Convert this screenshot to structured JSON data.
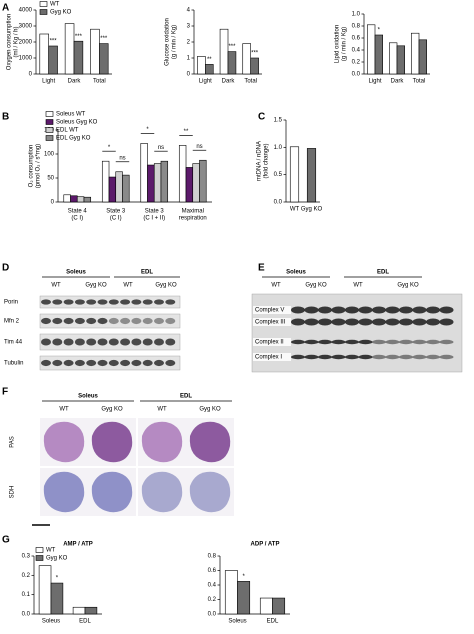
{
  "panels": [
    "A",
    "B",
    "C",
    "D",
    "E",
    "F",
    "G"
  ],
  "chart_data": [
    {
      "type": "bar",
      "ylabel": "Oxygen consumption\n(ml / Kg / h)",
      "categories": [
        "Light",
        "Dark",
        "Total"
      ],
      "series": [
        {
          "name": "WT",
          "color": "#ffffff",
          "values": [
            2500,
            3150,
            2800
          ]
        },
        {
          "name": "Gyg KO",
          "color": "#6d6d6d",
          "values": [
            1750,
            2050,
            1900
          ]
        }
      ],
      "significance": [
        "***",
        "***",
        "***"
      ],
      "ylim": [
        0,
        4000
      ],
      "yticks": [
        0,
        1000,
        2000,
        3000,
        4000
      ],
      "legend": "upper left"
    },
    {
      "type": "bar",
      "ylabel": "Glucose oxidation\n(g / min / Kg)",
      "categories": [
        "Light",
        "Dark",
        "Total"
      ],
      "series": [
        {
          "name": "WT",
          "color": "#ffffff",
          "values": [
            1.1,
            2.8,
            1.9
          ]
        },
        {
          "name": "Gyg KO",
          "color": "#6d6d6d",
          "values": [
            0.6,
            1.4,
            1.0
          ]
        }
      ],
      "significance": [
        "**",
        "***",
        "***"
      ],
      "ylim": [
        0,
        4
      ],
      "yticks": [
        0,
        1,
        2,
        3,
        4
      ]
    },
    {
      "type": "bar",
      "ylabel": "Lipid oxidation\n(g / min / Kg)",
      "categories": [
        "Light",
        "Dark",
        "Total"
      ],
      "series": [
        {
          "name": "WT",
          "color": "#ffffff",
          "values": [
            0.82,
            0.52,
            0.68
          ]
        },
        {
          "name": "Gyg KO",
          "color": "#6d6d6d",
          "values": [
            0.65,
            0.47,
            0.57
          ]
        }
      ],
      "significance": [
        "*",
        null,
        null
      ],
      "ylim": [
        0,
        1
      ],
      "yticks": [
        {
          "value": 0,
          "label": "0.0"
        },
        0.2,
        0.4,
        0.6,
        0.8,
        {
          "value": 1,
          "label": "1.0"
        }
      ]
    },
    {
      "type": "bar",
      "ylabel": "O₂ consumption\n(pmol O₂ / s*mg)",
      "categories": [
        "State 4\n(C I)",
        "State 3\n(C I)",
        "State 3\n(C I + II)",
        "Maximal\nrespiration"
      ],
      "series": [
        {
          "name": "Soleus WT",
          "color": "#ffffff",
          "values": [
            15,
            85,
            122,
            118
          ]
        },
        {
          "name": "Soleus Gyg KO",
          "color": "#5c1a6b",
          "values": [
            13,
            52,
            77,
            72
          ]
        },
        {
          "name": "EDL WT",
          "color": "#d0d0d0",
          "values": [
            11,
            63,
            80,
            80
          ]
        },
        {
          "name": "EDL Gyg KO",
          "color": "#8a8a8a",
          "values": [
            10,
            56,
            85,
            87
          ]
        }
      ],
      "significance_soleus": [
        null,
        "*",
        "*",
        "**"
      ],
      "significance_edl": [
        null,
        "ns",
        "ns",
        "ns"
      ],
      "ylim": [
        0,
        150
      ],
      "yticks": [
        0,
        50,
        100,
        150
      ],
      "legend": "upper left"
    },
    {
      "type": "bar",
      "ylabel": "mtDNA / nDNA\n(fold change)",
      "categories": [
        "WT",
        "Gyg KO"
      ],
      "values": [
        1.01,
        0.98
      ],
      "colors": [
        "#ffffff",
        "#6d6d6d"
      ],
      "ylim": [
        0,
        1.5
      ],
      "yticks": [
        {
          "value": 0,
          "label": "0.0"
        },
        0.5,
        {
          "value": 1,
          "label": "1.0"
        },
        1.5
      ]
    },
    {
      "type": "bar",
      "title": "AMP / ATP",
      "categories": [
        "Soleus",
        "EDL"
      ],
      "series": [
        {
          "name": "WT",
          "color": "#ffffff",
          "values": [
            0.25,
            0.035
          ]
        },
        {
          "name": "Gyg KO",
          "color": "#6d6d6d",
          "values": [
            0.16,
            0.035
          ]
        }
      ],
      "significance": [
        "*",
        null
      ],
      "ylim": [
        0,
        0.3
      ],
      "yticks": [
        {
          "value": 0,
          "label": "0.0"
        },
        0.1,
        0.2,
        0.3
      ],
      "legend": "upper left"
    },
    {
      "type": "bar",
      "title": "ADP / ATP",
      "categories": [
        "Soleus",
        "EDL"
      ],
      "series": [
        {
          "name": "WT",
          "color": "#ffffff",
          "values": [
            0.6,
            0.22
          ]
        },
        {
          "name": "Gyg KO",
          "color": "#6d6d6d",
          "values": [
            0.45,
            0.22
          ]
        }
      ],
      "significance": [
        "*",
        null
      ],
      "ylim": [
        0,
        0.8
      ],
      "yticks": [
        {
          "value": 0,
          "label": "0.0"
        },
        0.2,
        0.4,
        0.6,
        0.8
      ]
    }
  ],
  "blot_D": {
    "groups": [
      "Soleus",
      "EDL"
    ],
    "genotypes": [
      "WT",
      "Gyg KO",
      "WT",
      "Gyg KO"
    ],
    "rows": [
      "Porin",
      "Mfn 2",
      "Tim 44",
      "Tubulin"
    ]
  },
  "blot_E": {
    "groups": [
      "Soleus",
      "EDL"
    ],
    "genotypes": [
      "WT",
      "Gyg KO",
      "WT",
      "Gyg KO"
    ],
    "rows": [
      "Complex V",
      "Complex III",
      "Complex II",
      "Complex I"
    ]
  },
  "histology_F": {
    "groups": [
      "Soleus",
      "EDL"
    ],
    "genotypes": [
      "WT",
      "Gyg KO",
      "WT",
      "Gyg KO"
    ],
    "stains": [
      "PAS",
      "SDH"
    ]
  }
}
